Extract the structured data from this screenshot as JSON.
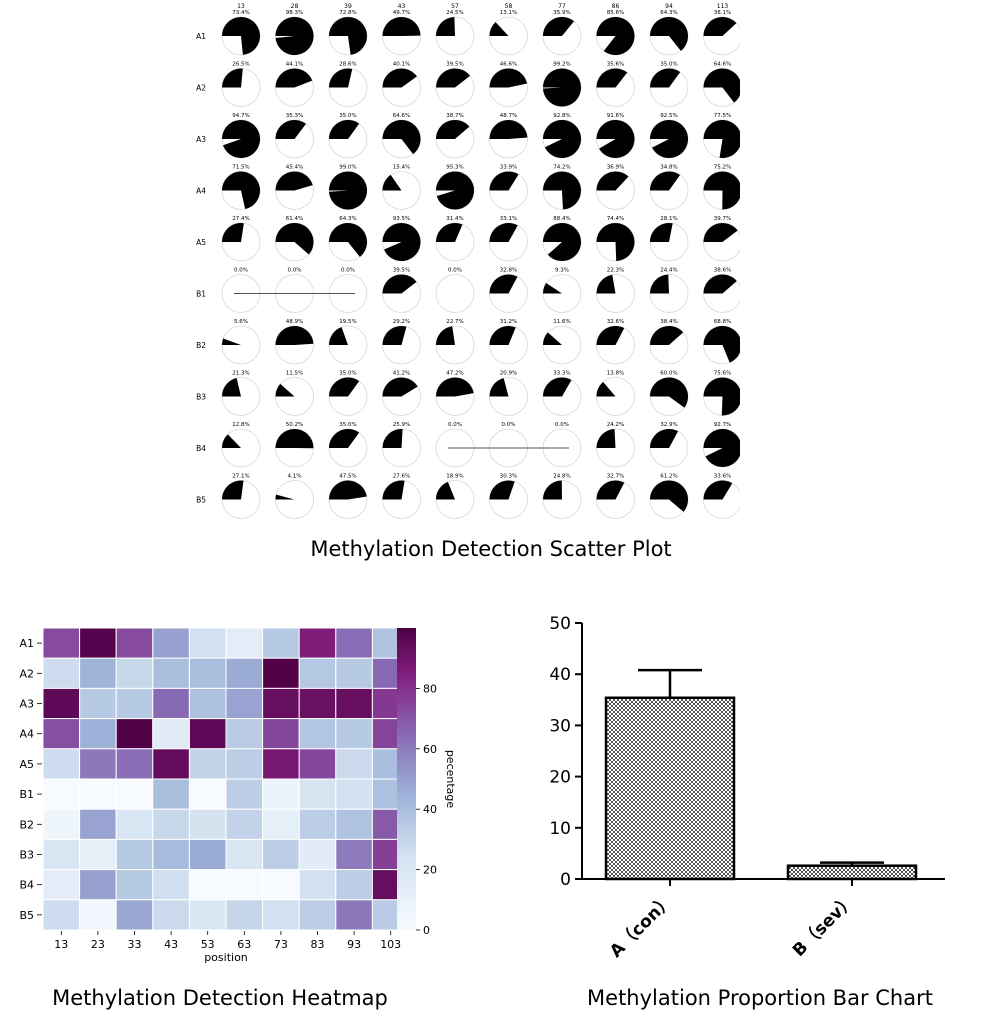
{
  "captions": {
    "scatter": "Methylation Detection Scatter Plot",
    "heatmap": "Methylation Detection Heatmap",
    "bar": "Methylation Proportion Bar Chart"
  },
  "chart_data": [
    {
      "type": "pie",
      "title": "",
      "rows": [
        "A1",
        "A2",
        "A3",
        "A4",
        "A5",
        "B1",
        "B2",
        "B3",
        "B4",
        "B5"
      ],
      "columns": [
        "13",
        "28",
        "39",
        "43",
        "57",
        "58",
        "77",
        "86",
        "94",
        "113"
      ],
      "values": [
        [
          73.4,
          98.3,
          72.8,
          49.7,
          24.5,
          13.1,
          35.9,
          85.6,
          64.3,
          38.1
        ],
        [
          26.5,
          44.1,
          28.6,
          40.1,
          39.5,
          46.6,
          99.2,
          35.6,
          35.0,
          64.6
        ],
        [
          94.7,
          35.3,
          35.0,
          64.6,
          38.7,
          48.7,
          92.8,
          91.6,
          92.5,
          77.5
        ],
        [
          71.5,
          45.4,
          99.0,
          15.4,
          95.3,
          33.9,
          74.2,
          36.9,
          34.8,
          75.2
        ],
        [
          27.4,
          61.4,
          64.3,
          93.5,
          31.4,
          33.1,
          88.4,
          74.4,
          28.1,
          39.7
        ],
        [
          0.0,
          0.0,
          0.0,
          39.5,
          0.0,
          32.8,
          9.3,
          22.3,
          24.4,
          38.6
        ],
        [
          5.6,
          48.9,
          19.5,
          29.2,
          22.7,
          31.2,
          11.6,
          32.6,
          38.4,
          68.8
        ],
        [
          21.3,
          11.5,
          35.0,
          41.2,
          47.2,
          20.9,
          33.3,
          13.8,
          60.0,
          75.6
        ],
        [
          12.8,
          50.2,
          35.0,
          25.9,
          0.0,
          0.0,
          0.0,
          24.2,
          32.9,
          92.7
        ],
        [
          27.1,
          4.1,
          47.5,
          27.6,
          18.9,
          30.3,
          24.8,
          32.7,
          61.2,
          33.6
        ]
      ],
      "no_data_segments": [
        {
          "row": "B1",
          "from_col": "13",
          "to_col": "39"
        },
        {
          "row": "B4",
          "from_col": "57",
          "to_col": "77"
        }
      ],
      "colors": {
        "fill": "#000000",
        "outline": "#d8d8d8"
      }
    },
    {
      "type": "heatmap",
      "title": "",
      "rows": [
        "A1",
        "A2",
        "A3",
        "A4",
        "A5",
        "B1",
        "B2",
        "B3",
        "B4",
        "B5"
      ],
      "x": [
        "13",
        "23",
        "33",
        "43",
        "53",
        "63",
        "73",
        "83",
        "93",
        "103"
      ],
      "xlabel": "position",
      "colorbar_label": "pecentage",
      "colorbar_ticks": [
        "0",
        "20",
        "40",
        "60",
        "80"
      ],
      "vmin": 0,
      "vmax": 100,
      "values": [
        [
          73,
          98,
          73,
          50,
          25,
          13,
          36,
          86,
          64,
          38
        ],
        [
          27,
          44,
          29,
          40,
          40,
          47,
          99,
          36,
          35,
          65
        ],
        [
          95,
          35,
          35,
          65,
          39,
          49,
          93,
          92,
          93,
          78
        ],
        [
          72,
          45,
          99,
          15,
          95,
          34,
          74,
          37,
          35,
          75
        ],
        [
          27,
          61,
          64,
          94,
          31,
          33,
          88,
          74,
          28,
          40
        ],
        [
          0,
          0,
          0,
          40,
          0,
          33,
          9,
          22,
          24,
          39
        ],
        [
          6,
          49,
          20,
          29,
          23,
          31,
          12,
          33,
          38,
          69
        ],
        [
          21,
          12,
          35,
          41,
          47,
          21,
          33,
          14,
          60,
          76
        ],
        [
          13,
          50,
          35,
          26,
          0,
          0,
          0,
          24,
          33,
          93
        ],
        [
          27,
          4,
          48,
          28,
          19,
          30,
          25,
          33,
          61,
          34
        ]
      ],
      "colors": {
        "low": "#f7fbff",
        "mid": "#9cb2d8",
        "high": "#4d0045"
      }
    },
    {
      "type": "bar",
      "title": "",
      "categories": [
        "A（con）",
        "B（sev）"
      ],
      "values": [
        35.4,
        2.6
      ],
      "errors": [
        5.4,
        0.6
      ],
      "yticks": [
        "0",
        "10",
        "20",
        "30",
        "40",
        "50"
      ],
      "ylim": [
        0,
        50
      ],
      "xlabel": "",
      "ylabel": "",
      "grid": false,
      "colors": {
        "fill": "#888888",
        "edge": "#000000"
      }
    }
  ]
}
